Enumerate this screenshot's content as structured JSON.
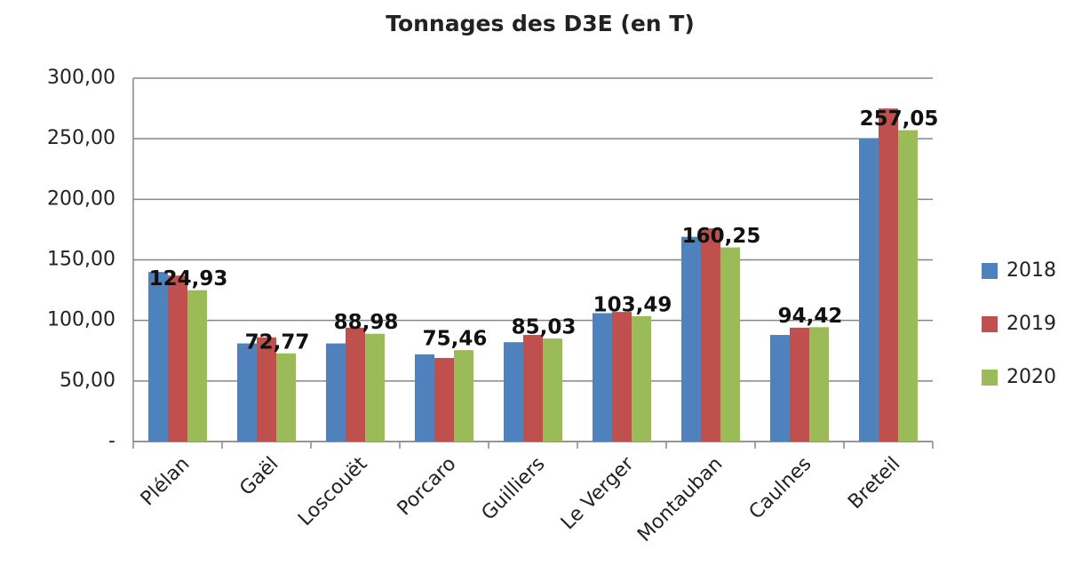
{
  "chart_data": {
    "type": "bar",
    "title": "Tonnages des D3E (en T)",
    "categories": [
      "Plélan",
      "Gaël",
      "Loscouët",
      "Porcaro",
      "Guilliers",
      "Le Verger",
      "Montauban",
      "Caulnes",
      "Breteil"
    ],
    "series": [
      {
        "name": "2018",
        "color": "#4f81bd",
        "values": [
          140,
          81,
          81,
          72,
          82,
          106,
          169,
          88,
          250
        ]
      },
      {
        "name": "2019",
        "color": "#c0504d",
        "values": [
          137,
          86,
          94,
          69,
          88,
          107,
          176,
          94,
          275
        ]
      },
      {
        "name": "2020",
        "color": "#9bbb59",
        "values": [
          124.93,
          72.77,
          88.98,
          75.46,
          85.03,
          103.49,
          160.25,
          94.42,
          257.05
        ],
        "value_labels": [
          "124,93",
          "72,77",
          "88,98",
          "75,46",
          "85,03",
          "103,49",
          "160,25",
          "94,42",
          "257,05"
        ]
      }
    ],
    "ylim": [
      0,
      300
    ],
    "yticks": [
      {
        "value": 0,
        "label": "-"
      },
      {
        "value": 50,
        "label": "50,00"
      },
      {
        "value": 100,
        "label": "100,00"
      },
      {
        "value": 150,
        "label": "150,00"
      },
      {
        "value": 200,
        "label": "200,00"
      },
      {
        "value": 250,
        "label": "250,00"
      },
      {
        "value": 300,
        "label": "300,00"
      }
    ],
    "grid": true,
    "legend": "right"
  }
}
